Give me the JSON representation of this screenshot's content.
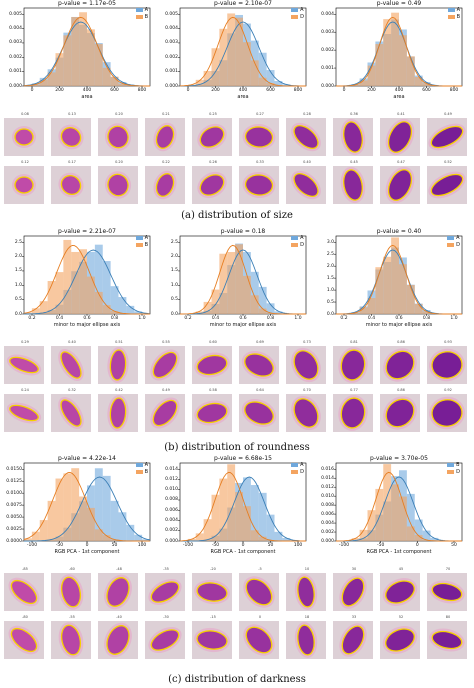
{
  "colors": {
    "A": "#6fa8dc",
    "B": "#f4a460",
    "A_line": "#3b7fb6",
    "B_line": "#e67e22"
  },
  "sections": [
    {
      "caption": "(a) distribution of size",
      "charts": [
        {
          "title": "p-value = 1.17e-05",
          "legend": [
            "A",
            "B"
          ],
          "xlabel": "area",
          "xticks": [
            "0",
            "200",
            "400",
            "600",
            "800"
          ],
          "yticks": [
            "0.000",
            "0.001",
            "0.002",
            "0.003",
            "0.004",
            "0.005"
          ],
          "shift": 0.0,
          "spread": 1.0
        },
        {
          "title": "p-value = 2.10e-07",
          "legend": [
            "A",
            "D"
          ],
          "xlabel": "area",
          "xticks": [
            "0",
            "200",
            "400",
            "600",
            "800"
          ],
          "yticks": [
            "0.000",
            "0.001",
            "0.002",
            "0.003",
            "0.004",
            "0.005"
          ],
          "shift": 0.05,
          "spread": 0.9
        },
        {
          "title": "p-value = 0.49",
          "legend": [
            "A",
            "B"
          ],
          "xlabel": "area",
          "xticks": [
            "0",
            "200",
            "400",
            "600",
            "800"
          ],
          "yticks": [
            "0.000",
            "0.001",
            "0.002",
            "0.003",
            "0.004"
          ],
          "shift": 0.0,
          "spread": 0.8
        }
      ],
      "labels_top": [
        "0.08",
        "0.13",
        "0.20",
        "0.21",
        "0.25",
        "0.27",
        "0.28",
        "0.36",
        "0.41",
        "0.49"
      ],
      "labels_bottom": [
        "0.12",
        "0.17",
        "0.20",
        "0.22",
        "0.26",
        "0.33",
        "0.40",
        "0.45",
        "0.47",
        "0.52"
      ]
    },
    {
      "caption": "(b) distribution of roundness",
      "charts": [
        {
          "title": "p-value = 2.21e-07",
          "legend": [
            "A",
            "B"
          ],
          "xlabel": "minor to major ellipse axis",
          "xticks": [
            "0.2",
            "0.4",
            "0.6",
            "0.8",
            "1.0"
          ],
          "yticks": [
            "0.0",
            "0.5",
            "1.0",
            "1.5",
            "2.0",
            "2.5"
          ],
          "shift": 0.1,
          "spread": 1.0
        },
        {
          "title": "p-value = 0.18",
          "legend": [
            "A",
            "D"
          ],
          "xlabel": "minor to major ellipse axis",
          "xticks": [
            "0.2",
            "0.4",
            "0.6",
            "0.8",
            "1.0"
          ],
          "yticks": [
            "0.0",
            "0.5",
            "1.0",
            "1.5",
            "2.0",
            "2.5"
          ],
          "shift": 0.05,
          "spread": 0.8
        },
        {
          "title": "p-value = 0.40",
          "legend": [
            "A",
            "D"
          ],
          "xlabel": "minor to major ellipse axis",
          "xticks": [
            "0.2",
            "0.4",
            "0.6",
            "0.8",
            "1.0"
          ],
          "yticks": [
            "0.0",
            "0.5",
            "1.0",
            "1.5",
            "2.0",
            "2.5",
            "3.0"
          ],
          "shift": 0.0,
          "spread": 0.8
        }
      ],
      "labels_top": [
        "0.29",
        "0.40",
        "0.51",
        "0.55",
        "0.60",
        "0.69",
        "0.73",
        "0.81",
        "0.86",
        "0.93"
      ],
      "labels_bottom": [
        "0.24",
        "0.32",
        "0.42",
        "0.49",
        "0.58",
        "0.64",
        "0.70",
        "0.77",
        "0.86",
        "0.92"
      ]
    },
    {
      "caption": "(c) distribution of darkness",
      "charts": [
        {
          "title": "p-value = 4.22e-14",
          "legend": [
            "A",
            "B"
          ],
          "xlabel": "RGB PCA - 1st component",
          "xticks": [
            "-100",
            "-50",
            "0",
            "50",
            "100"
          ],
          "yticks": [
            "0.0000",
            "0.0025",
            "0.0050",
            "0.0075",
            "0.0100",
            "0.0125",
            "0.0150"
          ],
          "shift": 0.15,
          "spread": 1.0
        },
        {
          "title": "p-value = 6.68e-15",
          "legend": [
            "A",
            "D"
          ],
          "xlabel": "RGB PCA - 1st component",
          "xticks": [
            "-100",
            "-50",
            "0",
            "50",
            "100"
          ],
          "yticks": [
            "0.000",
            "0.002",
            "0.004",
            "0.006",
            "0.008",
            "0.010",
            "0.012",
            "0.014"
          ],
          "shift": 0.1,
          "spread": 0.85
        },
        {
          "title": "p-value = 3.70e-05",
          "legend": [
            "B",
            "D"
          ],
          "xlabel": "RGB PCA - 1st component",
          "xticks": [
            "-100",
            "-50",
            "0",
            "50"
          ],
          "yticks": [
            "0.000",
            "0.002",
            "0.004",
            "0.006",
            "0.008",
            "0.010",
            "0.012",
            "0.014",
            "0.016"
          ],
          "shift": 0.05,
          "spread": 0.8
        }
      ],
      "labels_top": [
        "-85",
        "-60",
        "-48",
        "-35",
        "-20",
        "-5",
        "10",
        "30",
        "45",
        "70"
      ],
      "labels_bottom": [
        "-80",
        "-55",
        "-40",
        "-30",
        "-15",
        "0",
        "18",
        "33",
        "52",
        "80"
      ]
    }
  ]
}
